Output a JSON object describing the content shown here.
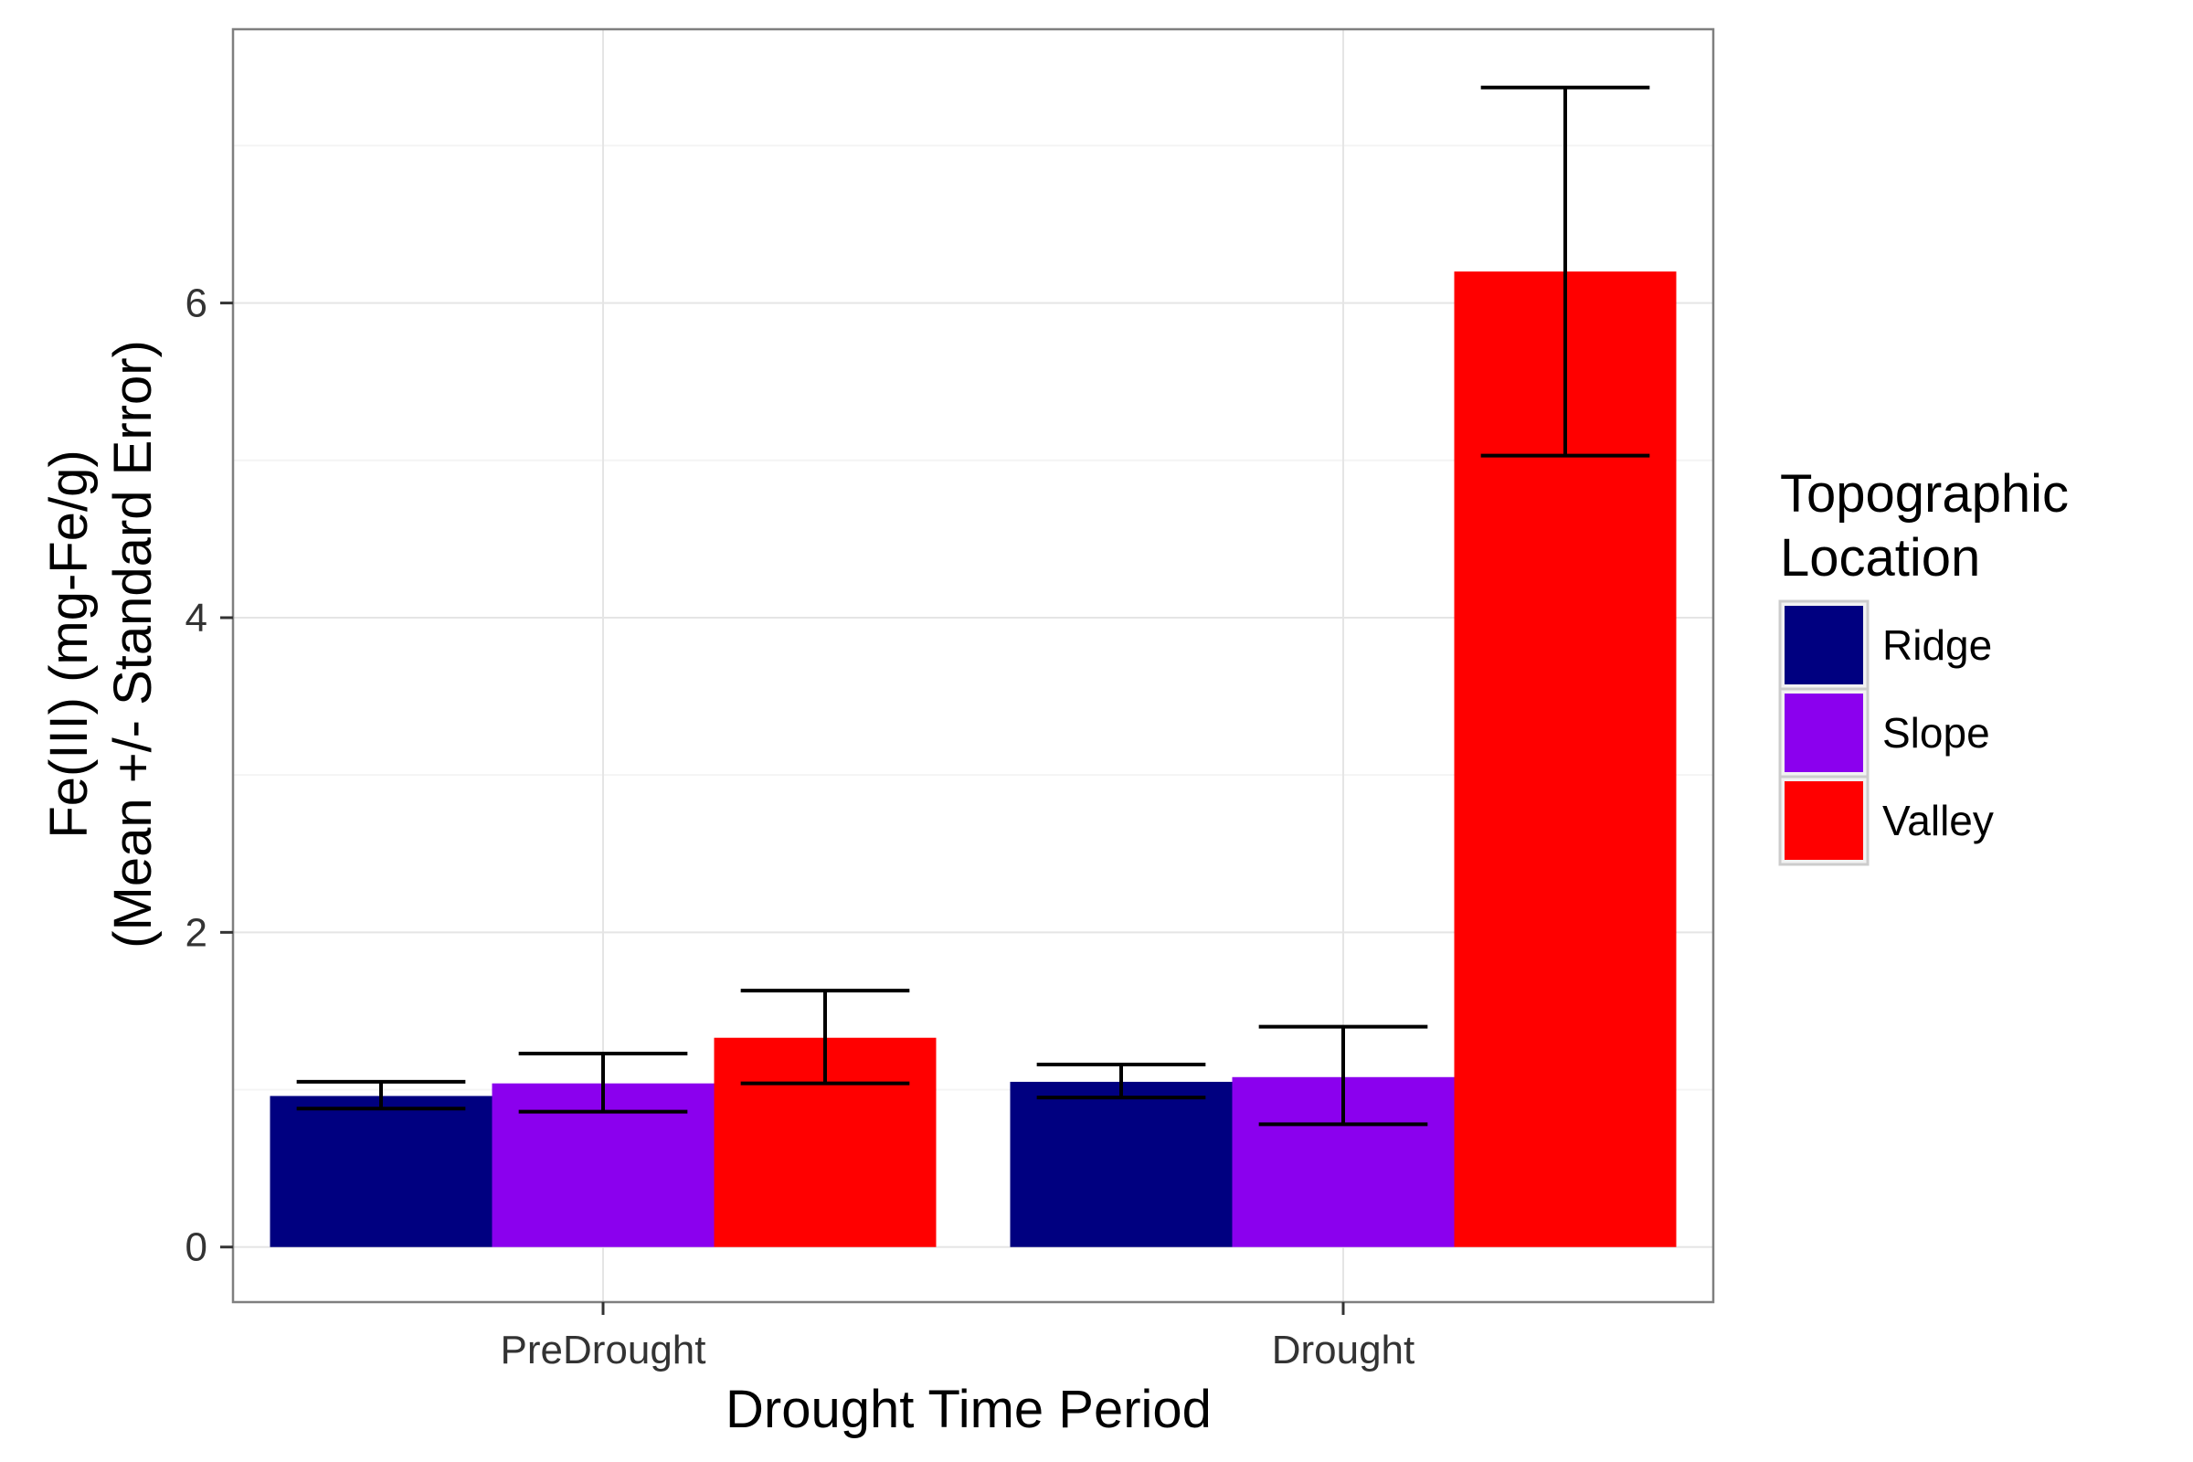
{
  "chart_data": {
    "type": "bar",
    "categories": [
      "PreDrought",
      "Drought"
    ],
    "series": [
      {
        "name": "Ridge",
        "color": "#000080",
        "values": [
          0.96,
          1.05
        ],
        "err_low": [
          0.88,
          0.95
        ],
        "err_high": [
          1.05,
          1.16
        ]
      },
      {
        "name": "Slope",
        "color": "#8B00EE",
        "values": [
          1.04,
          1.08
        ],
        "err_low": [
          0.86,
          0.78
        ],
        "err_high": [
          1.23,
          1.4
        ]
      },
      {
        "name": "Valley",
        "color": "#FF0000",
        "values": [
          1.33,
          6.2
        ],
        "err_low": [
          1.04,
          5.03
        ],
        "err_high": [
          1.63,
          7.37
        ]
      }
    ],
    "xlabel": "Drought Time Period",
    "ylabel_line1": "Fe(III) (mg-Fe/g)",
    "ylabel_line2": "(Mean +/- Standard Error)",
    "y_ticks": [
      0,
      2,
      4,
      6
    ],
    "y_tick_labels": [
      "0",
      "2",
      "4",
      "6"
    ],
    "ylim": [
      -0.35,
      7.74
    ],
    "grid": true,
    "legend": {
      "title_line1": "Topographic",
      "title_line2": "Location",
      "placement": "right"
    }
  }
}
